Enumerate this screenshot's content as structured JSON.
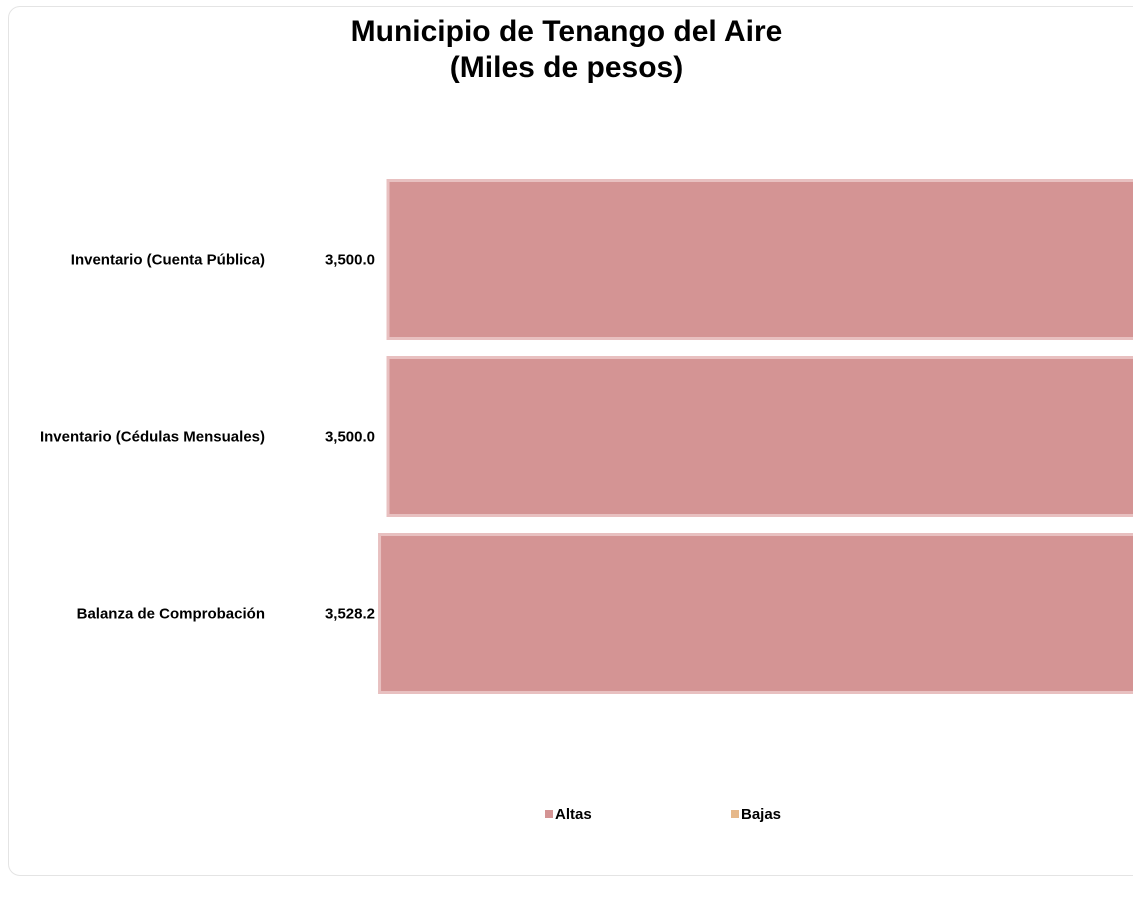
{
  "chart_data": {
    "type": "bar",
    "orientation": "horizontal",
    "title": "Municipio de Tenango del Aire",
    "subtitle": "(Miles de pesos)",
    "categories": [
      "Inventario (Cuenta Pública)",
      "Inventario (Cédulas Mensuales)",
      "Balanza de Comprobación"
    ],
    "series": [
      {
        "name": "Altas",
        "values": [
          3500.0,
          3500.0,
          3528.2
        ],
        "color": "#d49494"
      },
      {
        "name": "Bajas",
        "values": [
          0,
          0,
          0
        ],
        "color": "#e6b88a"
      }
    ],
    "data_labels": [
      "3,500.0",
      "3,500.0",
      "3,528.2"
    ],
    "legend_position": "bottom",
    "grid": false
  }
}
